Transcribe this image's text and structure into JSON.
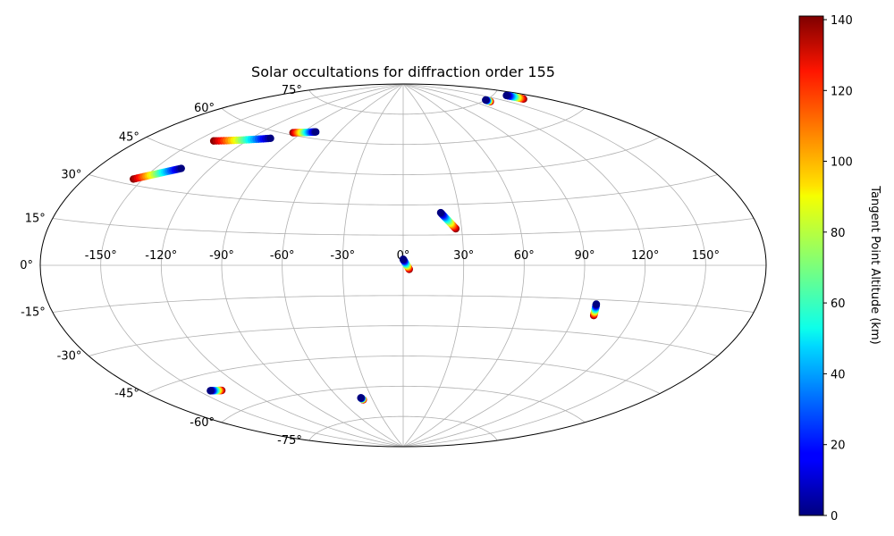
{
  "chart_data": {
    "type": "scatter",
    "projection": "Aitoff",
    "title": "Solar occultations for diffraction order 155",
    "xlabel": "",
    "ylabel": "",
    "grid": true,
    "longitude_ticks": [
      -150,
      -120,
      -90,
      -60,
      -30,
      0,
      30,
      60,
      90,
      120,
      150
    ],
    "longitude_tick_labels": [
      "-150°",
      "-120°",
      "-90°",
      "-60°",
      "-30°",
      "0°",
      "30°",
      "60°",
      "90°",
      "120°",
      "150°"
    ],
    "latitude_ticks": [
      -75,
      -60,
      -45,
      -30,
      -15,
      0,
      15,
      30,
      45,
      60,
      75
    ],
    "latitude_tick_labels": [
      "-75°",
      "-60°",
      "-45°",
      "-30°",
      "-15°",
      "0°",
      "15°",
      "30°",
      "45°",
      "60°",
      "75°"
    ],
    "colorbar": {
      "label": "Tangent Point Altitude (km)",
      "colormap": "jet",
      "range": [
        0,
        141
      ],
      "ticks": [
        0,
        20,
        40,
        60,
        80,
        100,
        120,
        140
      ],
      "tick_labels": [
        "0",
        "20",
        "40",
        "60",
        "80",
        "100",
        "120",
        "140"
      ]
    },
    "tracks": [
      {
        "lon_start": -136,
        "lat_start": 39,
        "lon_end": -155,
        "lat_end": 32,
        "alt_start": 0,
        "alt_end": 140
      },
      {
        "lon_start": -107,
        "lat_start": 57,
        "lon_end": -140,
        "lat_end": 51,
        "alt_start": 0,
        "alt_end": 140
      },
      {
        "lon_start": -80,
        "lat_start": 63,
        "lon_end": -97,
        "lat_end": 61,
        "alt_start": 0,
        "alt_end": 140
      },
      {
        "lon_start": 137,
        "lat_start": 75,
        "lon_end": 136,
        "lat_end": 74,
        "alt_start": 0,
        "alt_end": 140
      },
      {
        "lon_start": 167,
        "lat_start": 73,
        "lon_end": 167,
        "lat_end": 70,
        "alt_start": 0,
        "alt_end": 140
      },
      {
        "lon_start": 20,
        "lat_start": 26,
        "lon_end": 27,
        "lat_end": 18,
        "alt_start": 0,
        "alt_end": 140
      },
      {
        "lon_start": 0,
        "lat_start": 3,
        "lon_end": 3,
        "lat_end": -2,
        "alt_start": 0,
        "alt_end": 140
      },
      {
        "lon_start": 99,
        "lat_start": -17,
        "lon_end": 100,
        "lat_end": -22,
        "alt_start": 0,
        "alt_end": 140
      },
      {
        "lon_start": -143,
        "lat_start": -51,
        "lon_end": -136,
        "lat_end": -52,
        "alt_start": 0,
        "alt_end": 140
      },
      {
        "lon_start": -40,
        "lat_start": -65,
        "lon_end": -39,
        "lat_end": -66,
        "alt_start": 0,
        "alt_end": 140
      }
    ]
  }
}
